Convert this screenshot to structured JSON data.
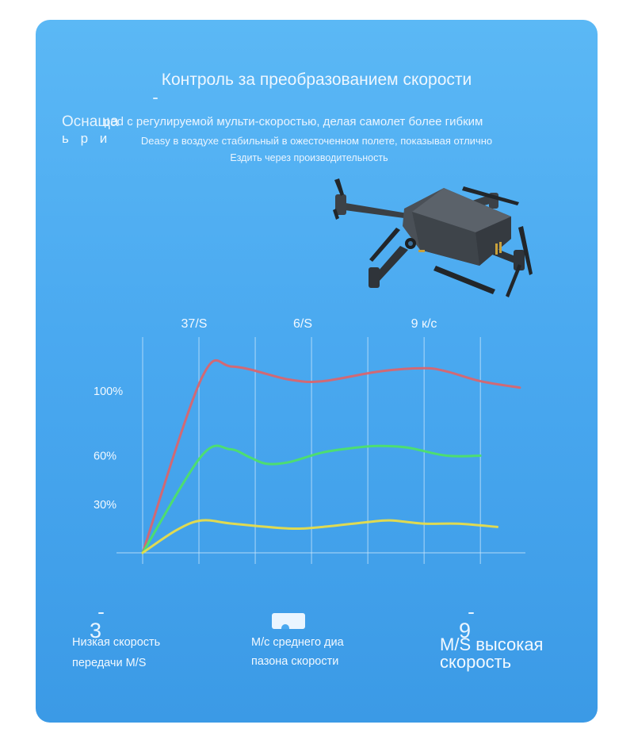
{
  "header": {
    "title": "Контроль за преобразованием скорости",
    "side_a": "Оснаща",
    "side_b": "ь р и",
    "desc_line1": "ped с регулируемой мульти-скоростью, делая самолет более гибким",
    "desc_line2": "Deasy в воздухе стабильный в ожесточенном полете, показывая отлично",
    "desc_line3": "Ездить через производительность"
  },
  "footer": {
    "low_line1": "Низкая скорость",
    "low_line2": "передачи M/S",
    "mid_line1": "M/с среднего диа",
    "mid_line2": "пазона скорости",
    "high_line1": "M/S высокая",
    "high_line2": "скорость",
    "big_num_left": "3",
    "big_num_right": "9"
  },
  "colors": {
    "high_series": "#d9656e",
    "mid_series": "#4ee06a",
    "low_series": "#e8dd4a",
    "grid": "#cfe8fb"
  },
  "chart_data": {
    "type": "line",
    "top_labels": [
      "37/S",
      "6/S",
      "9 к/с"
    ],
    "ytick_labels": [
      "100%",
      "60%",
      "30%"
    ],
    "ytick_values": [
      100,
      60,
      30
    ],
    "ylim": [
      0,
      120
    ],
    "xlim": [
      0,
      6.8
    ],
    "grid": true,
    "series": [
      {
        "key": "high",
        "x": [
          0,
          1.05,
          1.6,
          2.6,
          3.2,
          4.2,
          5.0,
          5.4,
          6.0,
          6.7
        ],
        "values": [
          0,
          108,
          115,
          107,
          106,
          112,
          114,
          112,
          106,
          102
        ]
      },
      {
        "key": "mid",
        "x": [
          0,
          1.05,
          1.55,
          1.9,
          2.2,
          2.6,
          3.2,
          3.8,
          4.2,
          4.7,
          5.4,
          6.0
        ],
        "values": [
          0,
          60,
          64,
          59,
          55,
          56,
          62,
          65,
          66,
          65,
          60,
          60
        ]
      },
      {
        "key": "low",
        "x": [
          0,
          0.6,
          1.05,
          1.6,
          2.6,
          3.2,
          4.0,
          4.4,
          5.0,
          5.6,
          6.3
        ],
        "values": [
          0,
          14,
          20,
          18,
          15,
          16,
          19,
          20,
          18,
          18,
          16
        ]
      }
    ]
  }
}
